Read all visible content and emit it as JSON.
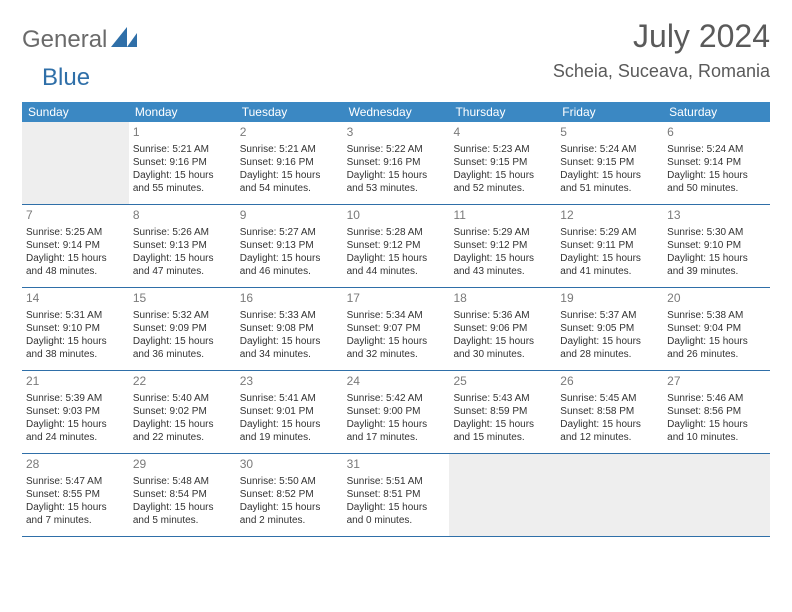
{
  "logo": {
    "text1": "General",
    "text2": "Blue"
  },
  "title": {
    "month": "July 2024",
    "location": "Scheia, Suceava, Romania"
  },
  "colors": {
    "header_bg": "#3b88c3",
    "header_text": "#ffffff",
    "border": "#2f6fa8",
    "daynum": "#7a7a7a",
    "text": "#333333",
    "empty_bg": "#eeeeee",
    "title_color": "#5a5a5a"
  },
  "dow": [
    "Sunday",
    "Monday",
    "Tuesday",
    "Wednesday",
    "Thursday",
    "Friday",
    "Saturday"
  ],
  "weeks": [
    [
      {
        "empty": true
      },
      {
        "n": "1",
        "sunrise": "Sunrise: 5:21 AM",
        "sunset": "Sunset: 9:16 PM",
        "dl1": "Daylight: 15 hours",
        "dl2": "and 55 minutes."
      },
      {
        "n": "2",
        "sunrise": "Sunrise: 5:21 AM",
        "sunset": "Sunset: 9:16 PM",
        "dl1": "Daylight: 15 hours",
        "dl2": "and 54 minutes."
      },
      {
        "n": "3",
        "sunrise": "Sunrise: 5:22 AM",
        "sunset": "Sunset: 9:16 PM",
        "dl1": "Daylight: 15 hours",
        "dl2": "and 53 minutes."
      },
      {
        "n": "4",
        "sunrise": "Sunrise: 5:23 AM",
        "sunset": "Sunset: 9:15 PM",
        "dl1": "Daylight: 15 hours",
        "dl2": "and 52 minutes."
      },
      {
        "n": "5",
        "sunrise": "Sunrise: 5:24 AM",
        "sunset": "Sunset: 9:15 PM",
        "dl1": "Daylight: 15 hours",
        "dl2": "and 51 minutes."
      },
      {
        "n": "6",
        "sunrise": "Sunrise: 5:24 AM",
        "sunset": "Sunset: 9:14 PM",
        "dl1": "Daylight: 15 hours",
        "dl2": "and 50 minutes."
      }
    ],
    [
      {
        "n": "7",
        "sunrise": "Sunrise: 5:25 AM",
        "sunset": "Sunset: 9:14 PM",
        "dl1": "Daylight: 15 hours",
        "dl2": "and 48 minutes."
      },
      {
        "n": "8",
        "sunrise": "Sunrise: 5:26 AM",
        "sunset": "Sunset: 9:13 PM",
        "dl1": "Daylight: 15 hours",
        "dl2": "and 47 minutes."
      },
      {
        "n": "9",
        "sunrise": "Sunrise: 5:27 AM",
        "sunset": "Sunset: 9:13 PM",
        "dl1": "Daylight: 15 hours",
        "dl2": "and 46 minutes."
      },
      {
        "n": "10",
        "sunrise": "Sunrise: 5:28 AM",
        "sunset": "Sunset: 9:12 PM",
        "dl1": "Daylight: 15 hours",
        "dl2": "and 44 minutes."
      },
      {
        "n": "11",
        "sunrise": "Sunrise: 5:29 AM",
        "sunset": "Sunset: 9:12 PM",
        "dl1": "Daylight: 15 hours",
        "dl2": "and 43 minutes."
      },
      {
        "n": "12",
        "sunrise": "Sunrise: 5:29 AM",
        "sunset": "Sunset: 9:11 PM",
        "dl1": "Daylight: 15 hours",
        "dl2": "and 41 minutes."
      },
      {
        "n": "13",
        "sunrise": "Sunrise: 5:30 AM",
        "sunset": "Sunset: 9:10 PM",
        "dl1": "Daylight: 15 hours",
        "dl2": "and 39 minutes."
      }
    ],
    [
      {
        "n": "14",
        "sunrise": "Sunrise: 5:31 AM",
        "sunset": "Sunset: 9:10 PM",
        "dl1": "Daylight: 15 hours",
        "dl2": "and 38 minutes."
      },
      {
        "n": "15",
        "sunrise": "Sunrise: 5:32 AM",
        "sunset": "Sunset: 9:09 PM",
        "dl1": "Daylight: 15 hours",
        "dl2": "and 36 minutes."
      },
      {
        "n": "16",
        "sunrise": "Sunrise: 5:33 AM",
        "sunset": "Sunset: 9:08 PM",
        "dl1": "Daylight: 15 hours",
        "dl2": "and 34 minutes."
      },
      {
        "n": "17",
        "sunrise": "Sunrise: 5:34 AM",
        "sunset": "Sunset: 9:07 PM",
        "dl1": "Daylight: 15 hours",
        "dl2": "and 32 minutes."
      },
      {
        "n": "18",
        "sunrise": "Sunrise: 5:36 AM",
        "sunset": "Sunset: 9:06 PM",
        "dl1": "Daylight: 15 hours",
        "dl2": "and 30 minutes."
      },
      {
        "n": "19",
        "sunrise": "Sunrise: 5:37 AM",
        "sunset": "Sunset: 9:05 PM",
        "dl1": "Daylight: 15 hours",
        "dl2": "and 28 minutes."
      },
      {
        "n": "20",
        "sunrise": "Sunrise: 5:38 AM",
        "sunset": "Sunset: 9:04 PM",
        "dl1": "Daylight: 15 hours",
        "dl2": "and 26 minutes."
      }
    ],
    [
      {
        "n": "21",
        "sunrise": "Sunrise: 5:39 AM",
        "sunset": "Sunset: 9:03 PM",
        "dl1": "Daylight: 15 hours",
        "dl2": "and 24 minutes."
      },
      {
        "n": "22",
        "sunrise": "Sunrise: 5:40 AM",
        "sunset": "Sunset: 9:02 PM",
        "dl1": "Daylight: 15 hours",
        "dl2": "and 22 minutes."
      },
      {
        "n": "23",
        "sunrise": "Sunrise: 5:41 AM",
        "sunset": "Sunset: 9:01 PM",
        "dl1": "Daylight: 15 hours",
        "dl2": "and 19 minutes."
      },
      {
        "n": "24",
        "sunrise": "Sunrise: 5:42 AM",
        "sunset": "Sunset: 9:00 PM",
        "dl1": "Daylight: 15 hours",
        "dl2": "and 17 minutes."
      },
      {
        "n": "25",
        "sunrise": "Sunrise: 5:43 AM",
        "sunset": "Sunset: 8:59 PM",
        "dl1": "Daylight: 15 hours",
        "dl2": "and 15 minutes."
      },
      {
        "n": "26",
        "sunrise": "Sunrise: 5:45 AM",
        "sunset": "Sunset: 8:58 PM",
        "dl1": "Daylight: 15 hours",
        "dl2": "and 12 minutes."
      },
      {
        "n": "27",
        "sunrise": "Sunrise: 5:46 AM",
        "sunset": "Sunset: 8:56 PM",
        "dl1": "Daylight: 15 hours",
        "dl2": "and 10 minutes."
      }
    ],
    [
      {
        "n": "28",
        "sunrise": "Sunrise: 5:47 AM",
        "sunset": "Sunset: 8:55 PM",
        "dl1": "Daylight: 15 hours",
        "dl2": "and 7 minutes."
      },
      {
        "n": "29",
        "sunrise": "Sunrise: 5:48 AM",
        "sunset": "Sunset: 8:54 PM",
        "dl1": "Daylight: 15 hours",
        "dl2": "and 5 minutes."
      },
      {
        "n": "30",
        "sunrise": "Sunrise: 5:50 AM",
        "sunset": "Sunset: 8:52 PM",
        "dl1": "Daylight: 15 hours",
        "dl2": "and 2 minutes."
      },
      {
        "n": "31",
        "sunrise": "Sunrise: 5:51 AM",
        "sunset": "Sunset: 8:51 PM",
        "dl1": "Daylight: 15 hours",
        "dl2": "and 0 minutes."
      },
      {
        "empty": true
      },
      {
        "empty": true
      },
      {
        "empty": true
      }
    ]
  ]
}
